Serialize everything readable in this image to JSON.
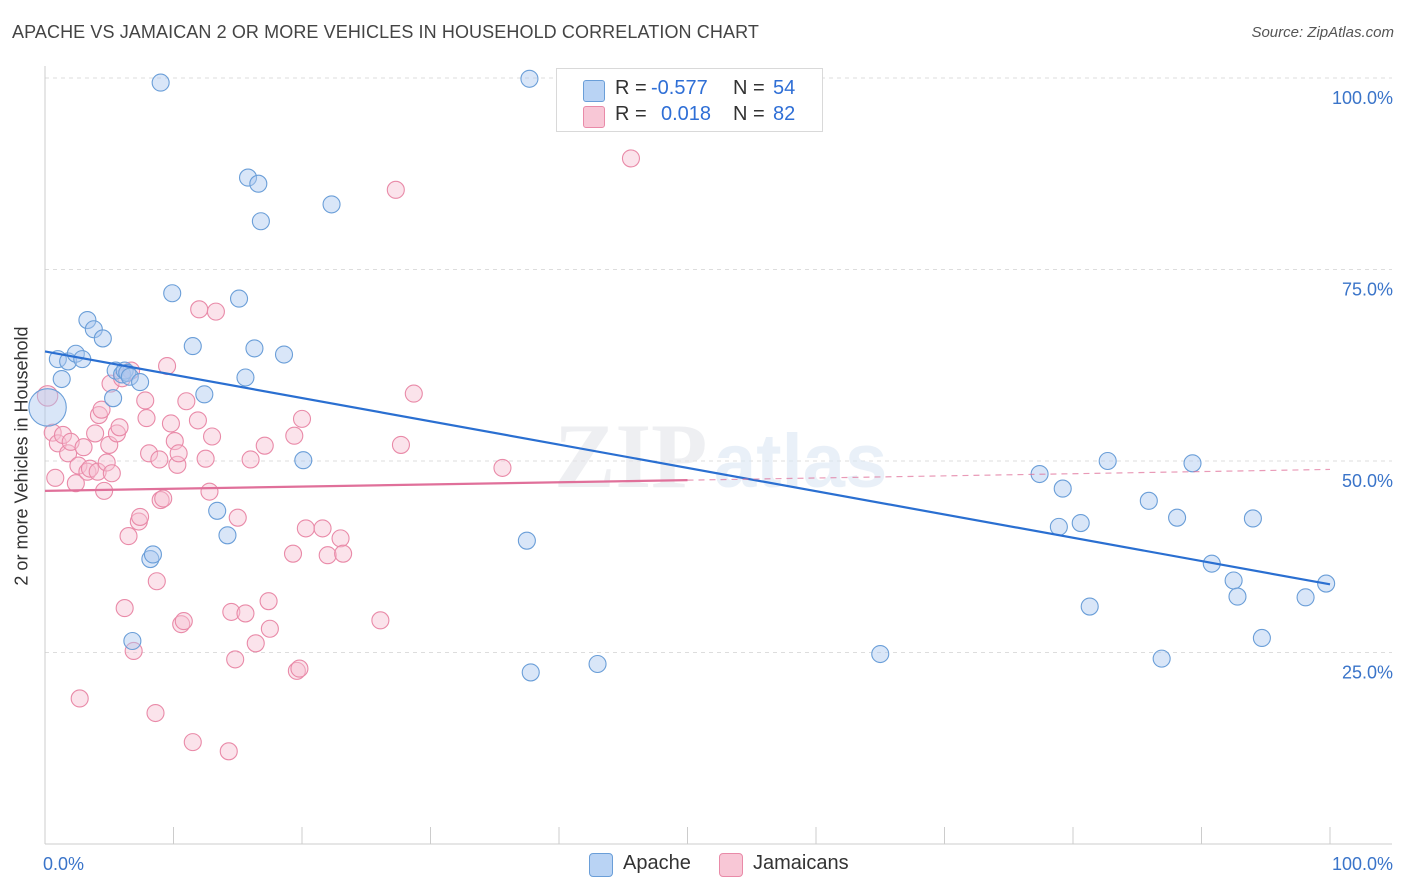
{
  "header": {
    "title": "APACHE VS JAMAICAN 2 OR MORE VEHICLES IN HOUSEHOLD CORRELATION CHART",
    "source": "Source: ZipAtlas.com"
  },
  "legend": {
    "apache": {
      "r_label": "R =",
      "r_value": "-0.577",
      "n_label": "N =",
      "n_value": "54"
    },
    "jamaicans": {
      "r_label": "R =",
      "r_value": "0.018",
      "n_label": "N =",
      "n_value": "82"
    }
  },
  "bottom_legend": {
    "apache": "Apache",
    "jamaicans": "Jamaicans"
  },
  "watermark": {
    "zip": "ZIP",
    "atlas": "atlas"
  },
  "colors": {
    "apache_fill": "#aac8f0",
    "apache_stroke": "#6a9ed8",
    "apache_line": "#2a6fd1",
    "jam_fill": "#f7c2d2",
    "jam_stroke": "#e98aa8",
    "jam_line": "#e0709a",
    "tick_blue": "#3a74c9",
    "grid": "#dddddd"
  },
  "chart_data": {
    "type": "scatter",
    "title": "APACHE VS JAMAICAN 2 OR MORE VEHICLES IN HOUSEHOLD CORRELATION CHART",
    "xlabel": "",
    "ylabel": "2 or more Vehicles in Household",
    "xlim": [
      0,
      100
    ],
    "ylim": [
      0,
      100
    ],
    "x_tick_labels": [
      "0.0%",
      "100.0%"
    ],
    "y_ticks": [
      25,
      50,
      75,
      100
    ],
    "y_tick_labels": [
      "25.0%",
      "50.0%",
      "75.0%",
      "100.0%"
    ],
    "series": [
      {
        "name": "Apache",
        "R": -0.577,
        "N": 54,
        "trend": {
          "x0": 0,
          "y0": 64.3,
          "x1": 100,
          "y1": 33.9,
          "dashed_after": null
        },
        "points": [
          [
            0.2,
            57,
            2.2
          ],
          [
            1.0,
            63.3,
            1
          ],
          [
            1.3,
            60.7,
            1
          ],
          [
            1.8,
            63.0,
            1
          ],
          [
            2.4,
            64.0,
            1
          ],
          [
            2.9,
            63.3,
            1
          ],
          [
            3.3,
            68.4,
            1
          ],
          [
            3.8,
            67.2,
            1
          ],
          [
            4.5,
            66.0,
            1
          ],
          [
            5.3,
            58.2,
            1
          ],
          [
            5.5,
            61.8,
            1
          ],
          [
            6.0,
            61.3,
            1
          ],
          [
            6.2,
            61.8,
            1
          ],
          [
            6.4,
            61.5,
            1
          ],
          [
            6.6,
            61.0,
            1
          ],
          [
            7.4,
            60.3,
            1
          ],
          [
            8.2,
            37.2,
            1
          ],
          [
            8.4,
            37.8,
            1
          ],
          [
            6.8,
            26.5,
            1
          ],
          [
            9.0,
            99.4,
            1
          ],
          [
            9.9,
            71.9,
            1
          ],
          [
            11.5,
            65.0,
            1
          ],
          [
            12.4,
            58.7,
            1
          ],
          [
            13.4,
            43.5,
            1
          ],
          [
            14.2,
            40.3,
            1
          ],
          [
            15.1,
            71.2,
            1
          ],
          [
            15.6,
            60.9,
            1
          ],
          [
            15.8,
            87.0,
            1
          ],
          [
            16.6,
            86.2,
            1
          ],
          [
            16.8,
            81.3,
            1
          ],
          [
            16.3,
            64.7,
            1
          ],
          [
            18.6,
            63.9,
            1
          ],
          [
            20.1,
            50.1,
            1
          ],
          [
            22.3,
            83.5,
            1
          ],
          [
            37.5,
            39.6,
            1
          ],
          [
            37.7,
            99.9,
            1
          ],
          [
            37.8,
            22.4,
            1
          ],
          [
            43.0,
            23.5,
            1
          ],
          [
            65.0,
            24.8,
            1
          ],
          [
            77.4,
            48.3,
            1
          ],
          [
            79.2,
            46.4,
            1
          ],
          [
            78.9,
            41.4,
            1
          ],
          [
            80.6,
            41.9,
            1
          ],
          [
            81.3,
            31.0,
            1
          ],
          [
            82.7,
            50.0,
            1
          ],
          [
            85.9,
            44.8,
            1
          ],
          [
            86.9,
            24.2,
            1
          ],
          [
            88.1,
            42.6,
            1
          ],
          [
            89.3,
            49.7,
            1
          ],
          [
            90.8,
            36.6,
            1
          ],
          [
            92.5,
            34.4,
            1
          ],
          [
            92.8,
            32.3,
            1
          ],
          [
            94.0,
            42.5,
            1
          ],
          [
            94.7,
            26.9,
            1
          ],
          [
            98.1,
            32.2,
            1
          ],
          [
            99.7,
            34.0,
            1
          ]
        ]
      },
      {
        "name": "Jamaicans",
        "R": 0.018,
        "N": 82,
        "trend": {
          "x0": 0,
          "y0": 46.1,
          "x1": 100,
          "y1": 48.9,
          "dashed_after": 50
        },
        "points": [
          [
            0.2,
            58.5,
            1.2
          ],
          [
            0.6,
            53.7,
            1
          ],
          [
            0.8,
            47.8,
            1
          ],
          [
            1.0,
            52.3,
            1
          ],
          [
            1.4,
            53.4,
            1
          ],
          [
            1.8,
            51.0,
            1
          ],
          [
            2.0,
            52.5,
            1
          ],
          [
            2.4,
            47.1,
            1
          ],
          [
            2.6,
            49.4,
            1
          ],
          [
            2.7,
            19.0,
            1
          ],
          [
            3.0,
            51.8,
            1
          ],
          [
            3.3,
            48.6,
            1
          ],
          [
            3.5,
            49.0,
            1
          ],
          [
            3.9,
            53.6,
            1
          ],
          [
            4.1,
            48.6,
            1
          ],
          [
            4.2,
            56.0,
            1
          ],
          [
            4.4,
            56.7,
            1
          ],
          [
            4.6,
            46.1,
            1
          ],
          [
            4.8,
            49.8,
            1
          ],
          [
            5.0,
            52.1,
            1
          ],
          [
            5.1,
            60.1,
            1
          ],
          [
            5.2,
            48.4,
            1
          ],
          [
            5.6,
            53.6,
            1
          ],
          [
            5.8,
            54.4,
            1
          ],
          [
            6.0,
            60.8,
            1
          ],
          [
            6.2,
            30.8,
            1
          ],
          [
            6.5,
            40.2,
            1
          ],
          [
            6.7,
            61.8,
            1
          ],
          [
            6.9,
            25.2,
            1
          ],
          [
            7.3,
            42.1,
            1
          ],
          [
            7.4,
            42.7,
            1
          ],
          [
            7.8,
            57.9,
            1
          ],
          [
            7.9,
            55.6,
            1
          ],
          [
            8.1,
            51.0,
            1
          ],
          [
            8.6,
            17.1,
            1
          ],
          [
            8.7,
            34.3,
            1
          ],
          [
            8.9,
            50.2,
            1
          ],
          [
            9.0,
            44.9,
            1
          ],
          [
            9.2,
            45.1,
            1
          ],
          [
            9.5,
            62.4,
            1
          ],
          [
            9.8,
            54.9,
            1
          ],
          [
            10.1,
            52.6,
            1
          ],
          [
            10.3,
            49.5,
            1
          ],
          [
            10.4,
            51.0,
            1
          ],
          [
            10.6,
            28.7,
            1
          ],
          [
            10.8,
            29.1,
            1
          ],
          [
            11.0,
            57.8,
            1
          ],
          [
            11.5,
            13.3,
            1
          ],
          [
            11.9,
            55.3,
            1
          ],
          [
            12.0,
            69.8,
            1
          ],
          [
            12.5,
            50.3,
            1
          ],
          [
            12.8,
            46.0,
            1
          ],
          [
            13.0,
            53.2,
            1
          ],
          [
            13.3,
            69.5,
            1
          ],
          [
            14.3,
            12.1,
            1
          ],
          [
            14.5,
            30.3,
            1
          ],
          [
            14.8,
            24.1,
            1
          ],
          [
            15.0,
            42.6,
            1
          ],
          [
            15.6,
            30.1,
            1
          ],
          [
            16.0,
            50.2,
            1
          ],
          [
            16.4,
            26.2,
            1
          ],
          [
            17.1,
            52.0,
            1
          ],
          [
            17.4,
            31.7,
            1
          ],
          [
            17.5,
            28.1,
            1
          ],
          [
            19.3,
            37.9,
            1
          ],
          [
            19.4,
            53.3,
            1
          ],
          [
            19.6,
            22.6,
            1
          ],
          [
            19.8,
            22.9,
            1
          ],
          [
            20.0,
            55.5,
            1
          ],
          [
            20.3,
            41.2,
            1
          ],
          [
            21.6,
            41.2,
            1
          ],
          [
            22.0,
            37.7,
            1
          ],
          [
            23.0,
            39.9,
            1
          ],
          [
            23.2,
            37.9,
            1
          ],
          [
            26.1,
            29.2,
            1
          ],
          [
            27.3,
            85.4,
            1
          ],
          [
            27.7,
            52.1,
            1
          ],
          [
            28.7,
            58.8,
            1
          ],
          [
            35.6,
            49.1,
            1
          ],
          [
            45.6,
            89.5,
            1
          ]
        ]
      }
    ]
  }
}
